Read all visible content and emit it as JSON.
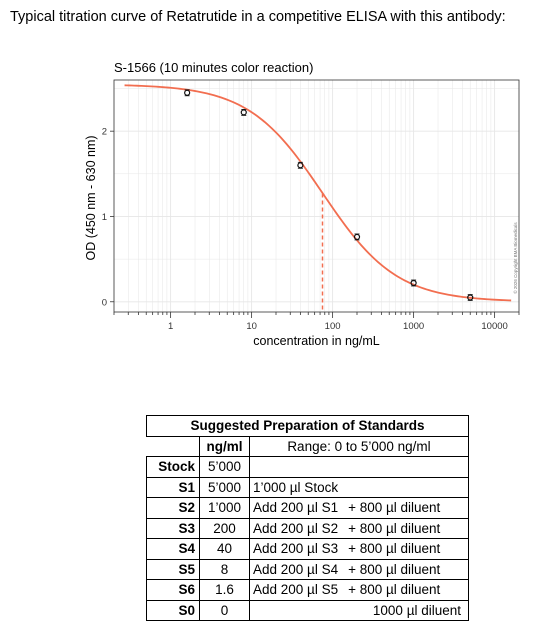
{
  "heading": "Typical titration curve of Retatrutide in a competitive ELISA with this antibody:",
  "chart_data": {
    "type": "line",
    "title": "S-1566 (10 minutes color reaction)",
    "xlabel": "concentration in ng/mL",
    "ylabel": "OD (450 nm - 630 nm)",
    "xscale": "log",
    "xlim": [
      0.2,
      20000
    ],
    "ylim": [
      -0.12,
      2.6
    ],
    "xticks": [
      1,
      10,
      100,
      1000,
      10000
    ],
    "xtick_labels": [
      "1",
      "10",
      "100",
      "1000",
      "10000"
    ],
    "yticks": [
      0,
      1,
      2
    ],
    "ytick_labels": [
      "0",
      "1",
      "2"
    ],
    "grid": true,
    "points": [
      {
        "x": 1.6,
        "y": 2.45
      },
      {
        "x": 8,
        "y": 2.22
      },
      {
        "x": 40,
        "y": 1.6
      },
      {
        "x": 200,
        "y": 0.76
      },
      {
        "x": 1000,
        "y": 0.22
      },
      {
        "x": 5000,
        "y": 0.05
      }
    ],
    "fit": {
      "min": 0.0,
      "max": 2.55,
      "ic50": 75,
      "hill": 0.95
    },
    "ic50_marker": {
      "x": 75,
      "y": 1.27
    },
    "colors": {
      "curve": "#f26e50",
      "points": "#111111",
      "grid": "#e6e6e6"
    },
    "copyright": "© 2026 Copyright BMA Biomedicals"
  },
  "table": {
    "title": "Suggested Preparation of Standards",
    "header": {
      "col1": "ng/ml",
      "col2": "Range: 0 to 5’000 ng/ml"
    },
    "rows": [
      {
        "name": "Stock",
        "conc": "5’000",
        "prep": "",
        "diluent": ""
      },
      {
        "name": "S1",
        "conc": "5’000",
        "prep": "1’000 µl Stock",
        "diluent": ""
      },
      {
        "name": "S2",
        "conc": "1’000",
        "prep": "Add 200 µl S1",
        "diluent": "+ 800 µl diluent"
      },
      {
        "name": "S3",
        "conc": "200",
        "prep": "Add 200 µl S2",
        "diluent": "+ 800 µl diluent"
      },
      {
        "name": "S4",
        "conc": "40",
        "prep": "Add 200 µl S3",
        "diluent": "+ 800 µl diluent"
      },
      {
        "name": "S5",
        "conc": "8",
        "prep": "Add 200 µl S4",
        "diluent": "+ 800 µl diluent"
      },
      {
        "name": "S6",
        "conc": "1.6",
        "prep": "Add 200 µl S5",
        "diluent": "+ 800 µl diluent"
      },
      {
        "name": "S0",
        "conc": "0",
        "prep": "",
        "diluent": "1000 µl diluent"
      }
    ]
  }
}
